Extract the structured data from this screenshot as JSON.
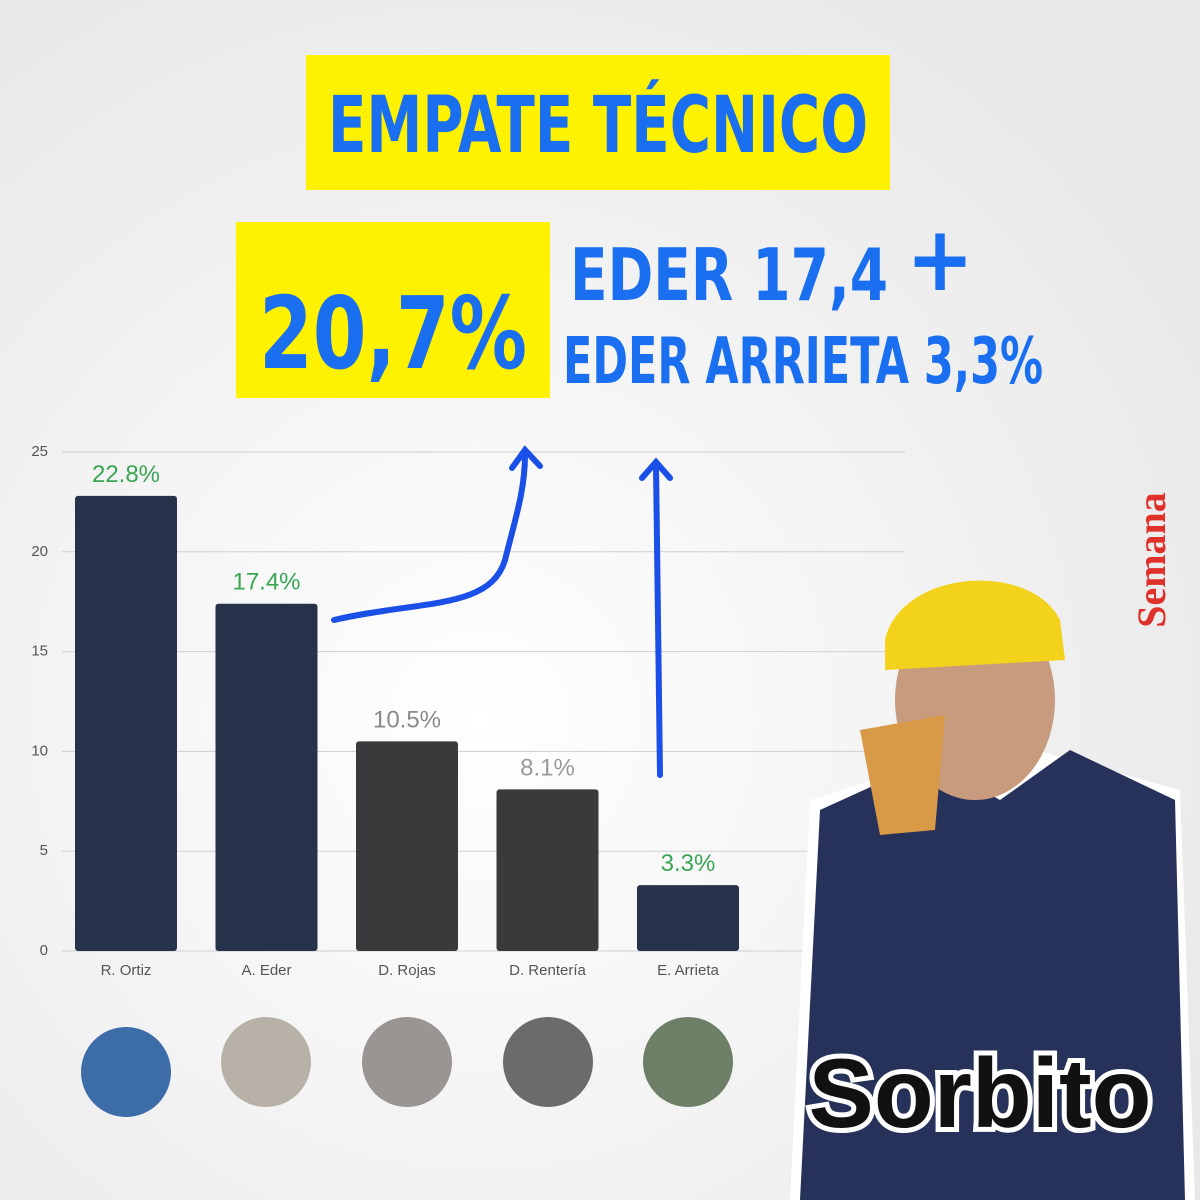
{
  "chart_data": {
    "type": "bar",
    "headline": "EMPATE TÉCNICO",
    "annotations": [
      "20,7%",
      "EDER 17,4",
      "+",
      "EDER ARRIETA 3,3%",
      "Semana",
      "Sorbito"
    ],
    "categories": [
      "R. Ortiz",
      "A. Eder",
      "D. Rojas",
      "D. Rentería",
      "E. Arrieta"
    ],
    "values": [
      22.8,
      17.4,
      10.5,
      8.1,
      3.3
    ],
    "value_labels": [
      "22.8%",
      "17.4%",
      "10.5%",
      "8.1%",
      "3.3%"
    ],
    "colors": [
      "#27324b",
      "#27324b",
      "#3a3a3c",
      "#3a3a3c",
      "#27324b"
    ],
    "label_colors": [
      "#3aa655",
      "#3aa655",
      "#8a8a8a",
      "#9a9a9a",
      "#3aa655"
    ],
    "ylim": [
      0,
      25
    ],
    "yticks": [
      0,
      5,
      10,
      15,
      20,
      25
    ],
    "grid": true
  }
}
